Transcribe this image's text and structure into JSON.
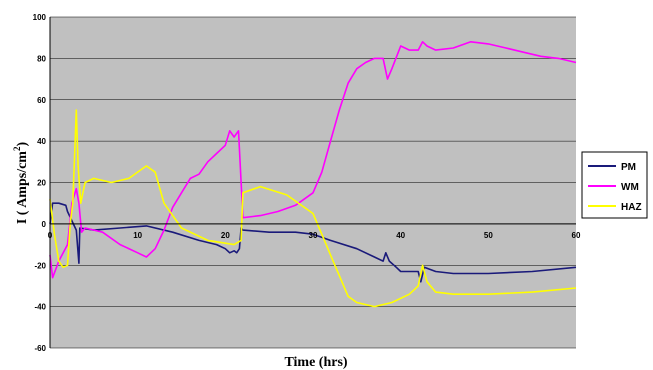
{
  "chart_data": {
    "type": "line",
    "title": "",
    "xlabel": "Time (hrs)",
    "ylabel_main": "I ( Amps/cm",
    "ylabel_sup": "2",
    "ylabel_close": ")",
    "xlim": [
      0,
      60
    ],
    "ylim": [
      -60,
      100
    ],
    "x_ticks": [
      0,
      10,
      20,
      30,
      40,
      50,
      60
    ],
    "y_ticks": [
      -60,
      -40,
      -20,
      0,
      20,
      40,
      60,
      80,
      100
    ],
    "x_tick_labels": [
      "0",
      "10",
      "20",
      "30",
      "40",
      "50",
      "60"
    ],
    "y_tick_labels": [
      "-60",
      "-40",
      "-20",
      "0",
      "20",
      "40",
      "60",
      "80",
      "100"
    ],
    "grid": true,
    "legend_position": "right",
    "plot_background": "#c0c0c0",
    "series": [
      {
        "name": "PM",
        "color": "#1a1a7a",
        "points": [
          [
            0,
            0
          ],
          [
            0.3,
            10
          ],
          [
            1,
            10
          ],
          [
            1.8,
            9
          ],
          [
            2,
            6
          ],
          [
            3,
            -3
          ],
          [
            3.3,
            -19
          ],
          [
            3.4,
            -2
          ],
          [
            5,
            -3
          ],
          [
            8,
            -2
          ],
          [
            11,
            -1
          ],
          [
            14,
            -4
          ],
          [
            17,
            -8
          ],
          [
            19,
            -10
          ],
          [
            20,
            -12
          ],
          [
            20.5,
            -14
          ],
          [
            21,
            -13
          ],
          [
            21.3,
            -14
          ],
          [
            21.6,
            -12
          ],
          [
            21.8,
            -2
          ],
          [
            22,
            -3
          ],
          [
            25,
            -4
          ],
          [
            28,
            -4
          ],
          [
            30,
            -5
          ],
          [
            32,
            -8
          ],
          [
            35,
            -12
          ],
          [
            37,
            -16
          ],
          [
            38,
            -18
          ],
          [
            38.3,
            -14
          ],
          [
            38.7,
            -18
          ],
          [
            39.5,
            -21
          ],
          [
            40,
            -23
          ],
          [
            41,
            -23
          ],
          [
            42,
            -23
          ],
          [
            42.3,
            -28
          ],
          [
            42.7,
            -21
          ],
          [
            44,
            -23
          ],
          [
            46,
            -24
          ],
          [
            50,
            -24
          ],
          [
            55,
            -23
          ],
          [
            60,
            -21
          ]
        ]
      },
      {
        "name": "WM",
        "color": "#ff00ff",
        "points": [
          [
            0,
            -15
          ],
          [
            0.3,
            -26
          ],
          [
            1,
            -18
          ],
          [
            2,
            -10
          ],
          [
            2.5,
            10
          ],
          [
            3,
            17
          ],
          [
            3.3,
            10
          ],
          [
            3.6,
            -4
          ],
          [
            4,
            -2
          ],
          [
            6,
            -4
          ],
          [
            8,
            -10
          ],
          [
            10,
            -14
          ],
          [
            11,
            -16
          ],
          [
            12,
            -12
          ],
          [
            13,
            -3
          ],
          [
            14,
            8
          ],
          [
            15,
            15
          ],
          [
            16,
            22
          ],
          [
            17,
            24
          ],
          [
            18,
            30
          ],
          [
            19,
            34
          ],
          [
            20,
            38
          ],
          [
            20.5,
            45
          ],
          [
            21,
            42
          ],
          [
            21.5,
            45
          ],
          [
            22,
            3
          ],
          [
            24,
            4
          ],
          [
            26,
            6
          ],
          [
            28,
            9
          ],
          [
            30,
            15
          ],
          [
            31,
            25
          ],
          [
            32,
            40
          ],
          [
            33,
            55
          ],
          [
            34,
            68
          ],
          [
            35,
            75
          ],
          [
            36,
            78
          ],
          [
            37,
            80
          ],
          [
            38,
            80
          ],
          [
            38.5,
            70
          ],
          [
            39,
            75
          ],
          [
            40,
            86
          ],
          [
            41,
            84
          ],
          [
            42,
            84
          ],
          [
            42.5,
            88
          ],
          [
            43,
            86
          ],
          [
            44,
            84
          ],
          [
            46,
            85
          ],
          [
            48,
            88
          ],
          [
            50,
            87
          ],
          [
            52,
            85
          ],
          [
            54,
            83
          ],
          [
            56,
            81
          ],
          [
            58,
            80
          ],
          [
            60,
            78
          ]
        ]
      },
      {
        "name": "HAZ",
        "color": "#ffff00",
        "points": [
          [
            0,
            12
          ],
          [
            0.5,
            -5
          ],
          [
            1,
            -18
          ],
          [
            1.5,
            -21
          ],
          [
            2,
            -20
          ],
          [
            2.3,
            0
          ],
          [
            2.6,
            10
          ],
          [
            3,
            55
          ],
          [
            3.2,
            28
          ],
          [
            3.5,
            10
          ],
          [
            4,
            20
          ],
          [
            5,
            22
          ],
          [
            7,
            20
          ],
          [
            9,
            22
          ],
          [
            11,
            28
          ],
          [
            12,
            25
          ],
          [
            13,
            10
          ],
          [
            15,
            -2
          ],
          [
            18,
            -8
          ],
          [
            21,
            -10
          ],
          [
            21.8,
            -8
          ],
          [
            22,
            15
          ],
          [
            24,
            18
          ],
          [
            27,
            14
          ],
          [
            30,
            5
          ],
          [
            31,
            -5
          ],
          [
            32,
            -15
          ],
          [
            33,
            -25
          ],
          [
            34,
            -35
          ],
          [
            35,
            -38
          ],
          [
            37,
            -40
          ],
          [
            39,
            -38
          ],
          [
            41,
            -34
          ],
          [
            42,
            -30
          ],
          [
            42.5,
            -20
          ],
          [
            43,
            -28
          ],
          [
            44,
            -33
          ],
          [
            46,
            -34
          ],
          [
            50,
            -34
          ],
          [
            55,
            -33
          ],
          [
            60,
            -31
          ]
        ]
      }
    ]
  }
}
